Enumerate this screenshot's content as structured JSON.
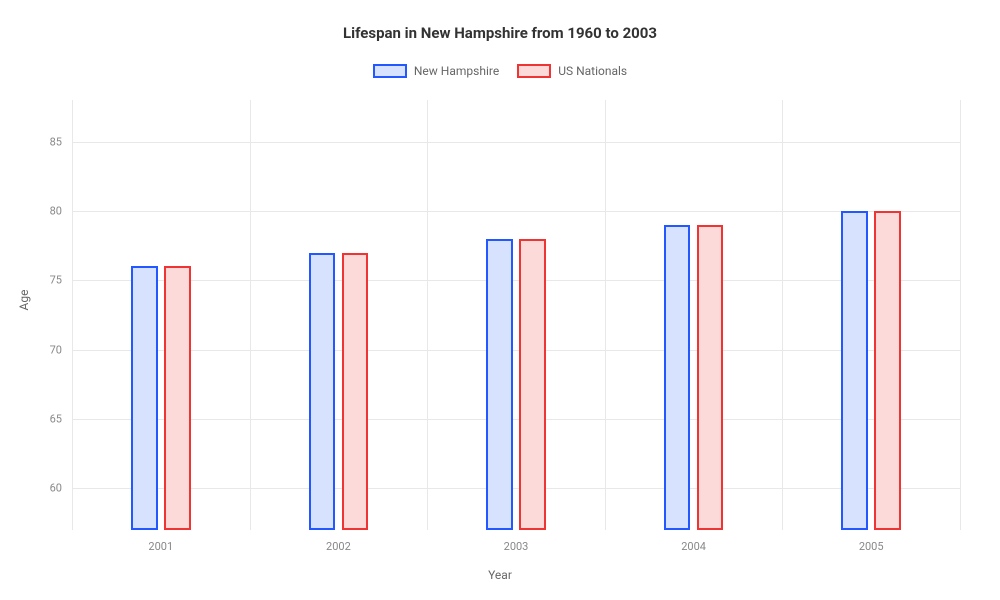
{
  "chart": {
    "type": "bar",
    "title": "Lifespan in New Hampshire from 1960 to 2003",
    "title_fontsize": 15,
    "xlabel": "Year",
    "ylabel": "Age",
    "label_fontsize": 12,
    "background_color": "#ffffff",
    "grid_color": "#e8e8e8",
    "tick_color": "#888888",
    "categories": [
      "2001",
      "2002",
      "2003",
      "2004",
      "2005"
    ],
    "series": [
      {
        "name": "New Hampshire",
        "values": [
          76,
          77,
          78,
          79,
          80
        ],
        "border_color": "#2357ff",
        "fill_color": "#d7e2ff"
      },
      {
        "name": "US Nationals",
        "values": [
          76,
          77,
          78,
          79,
          80
        ],
        "border_color": "#ef3434",
        "fill_color": "#fcdada"
      }
    ],
    "ylim": [
      57,
      88
    ],
    "yticks": [
      60,
      65,
      70,
      75,
      80,
      85
    ],
    "bar_width_pct": 3.0,
    "bar_gap_pct": 0.7,
    "bar_border_width": 2,
    "legend_swatch_w": 34,
    "legend_swatch_h": 14
  }
}
